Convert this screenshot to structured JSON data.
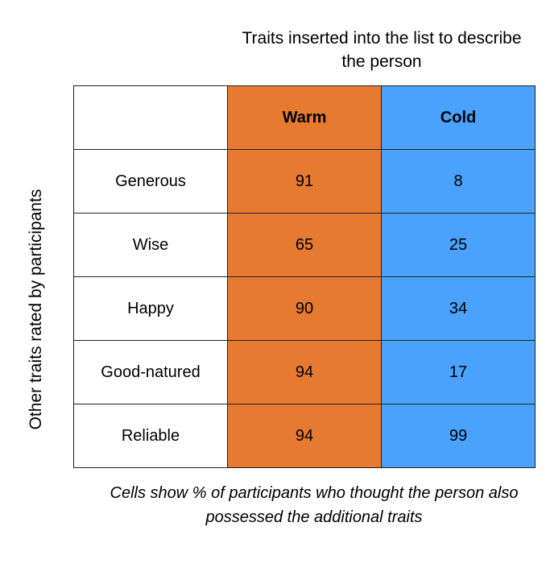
{
  "chart_data": {
    "type": "table",
    "column_title": "Traits inserted into the list to describe the person",
    "row_title": "Other traits rated by participants",
    "columns": [
      {
        "name": "Warm",
        "color": "#e57a30"
      },
      {
        "name": "Cold",
        "color": "#4aa2fc"
      }
    ],
    "rows": [
      {
        "trait": "Generous",
        "values": [
          91,
          8
        ]
      },
      {
        "trait": "Wise",
        "values": [
          65,
          25
        ]
      },
      {
        "trait": "Happy",
        "values": [
          90,
          34
        ]
      },
      {
        "trait": "Good-natured",
        "values": [
          94,
          17
        ]
      },
      {
        "trait": "Reliable",
        "values": [
          94,
          99
        ]
      }
    ],
    "footnote": "Cells show % of participants who thought the person also possessed the additional traits"
  }
}
